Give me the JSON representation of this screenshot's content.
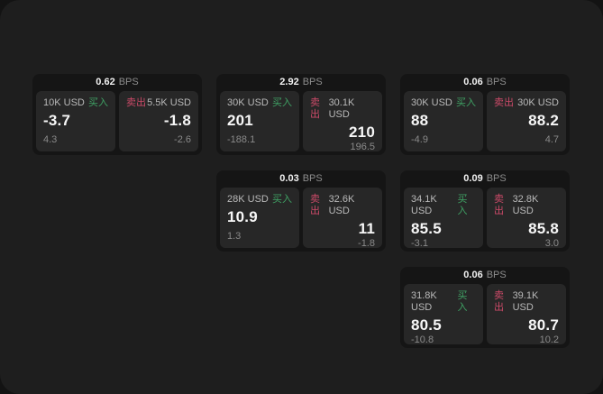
{
  "labels": {
    "bps_unit": "BPS",
    "buy": "买入",
    "sell": "卖出"
  },
  "colors": {
    "buy_green": "#3fa164",
    "sell_red": "#cb4a68",
    "panel_background": "#1e1e1e",
    "card_background": "#151515",
    "tile_background": "#272727"
  },
  "cards": [
    {
      "bps": "0.62",
      "buy": {
        "size": "10K USD",
        "price": "-3.7",
        "delta": "4.3"
      },
      "sell": {
        "size": "5.5K USD",
        "price": "-1.8",
        "delta": "-2.6"
      }
    },
    {
      "bps": "2.92",
      "buy": {
        "size": "30K USD",
        "price": "201",
        "delta": "-188.1"
      },
      "sell": {
        "size": "30.1K USD",
        "price": "210",
        "delta": "196.5"
      }
    },
    {
      "bps": "0.06",
      "buy": {
        "size": "30K USD",
        "price": "88",
        "delta": "-4.9"
      },
      "sell": {
        "size": "30K USD",
        "price": "88.2",
        "delta": "4.7"
      }
    },
    {
      "bps": "0.03",
      "buy": {
        "size": "28K USD",
        "price": "10.9",
        "delta": "1.3"
      },
      "sell": {
        "size": "32.6K USD",
        "price": "11",
        "delta": "-1.8"
      }
    },
    {
      "bps": "0.09",
      "buy": {
        "size": "34.1K USD",
        "price": "85.5",
        "delta": "-3.1"
      },
      "sell": {
        "size": "32.8K USD",
        "price": "85.8",
        "delta": "3.0"
      }
    },
    {
      "bps": "0.06",
      "buy": {
        "size": "31.8K USD",
        "price": "80.5",
        "delta": "-10.8"
      },
      "sell": {
        "size": "39.1K USD",
        "price": "80.7",
        "delta": "10.2"
      }
    }
  ]
}
